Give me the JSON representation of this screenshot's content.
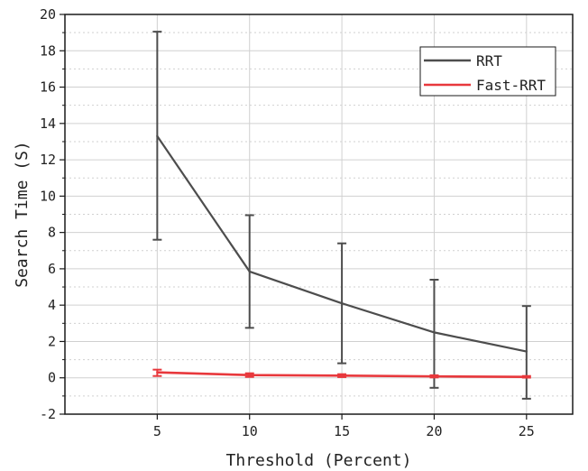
{
  "chart_data": {
    "type": "line",
    "title": "",
    "xlabel": "Threshold (Percent)",
    "ylabel": "Search Time (S)",
    "x": [
      5,
      10,
      15,
      20,
      25
    ],
    "x_ticks": [
      "5",
      "10",
      "15",
      "20",
      "25"
    ],
    "xlim": [
      0,
      27.5
    ],
    "ylim": [
      -2,
      20
    ],
    "y_ticks": [
      "-2",
      "0",
      "2",
      "4",
      "6",
      "8",
      "10",
      "12",
      "14",
      "16",
      "18",
      "20"
    ],
    "grid": true,
    "legend_position": "top-right",
    "series": [
      {
        "name": "RRT",
        "color": "#4d4d4d",
        "values": [
          13.3,
          5.85,
          4.1,
          2.5,
          1.45
        ],
        "error_low": [
          7.6,
          2.75,
          0.8,
          -0.55,
          -1.15
        ],
        "error_high": [
          19.05,
          8.95,
          7.4,
          5.4,
          3.95
        ]
      },
      {
        "name": "Fast-RRT",
        "color": "#e8383c",
        "values": [
          0.3,
          0.15,
          0.12,
          0.08,
          0.05
        ],
        "error_low": [
          0.1,
          0.05,
          0.04,
          0.02,
          0.01
        ],
        "error_high": [
          0.45,
          0.25,
          0.2,
          0.14,
          0.1
        ]
      }
    ]
  }
}
